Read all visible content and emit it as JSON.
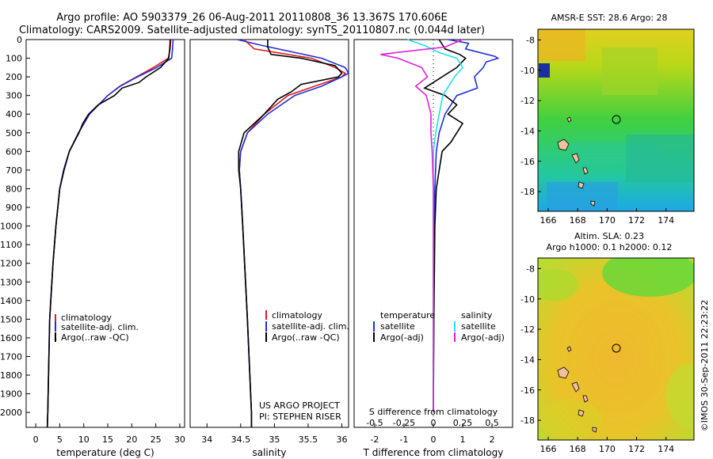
{
  "title": {
    "line1": "Argo profile: AO 5903379_26 06-Aug-2011 20110808_36 13.367S 170.606E",
    "line2": "Climatology: CARS2009. Satellite-adjusted climatology: synTS_20110807.nc (0.044d later)"
  },
  "colors": {
    "climatology": "#e41a1c",
    "satellite": "#1f2fd6",
    "argo": "#000000",
    "sat_salinity": "#22e0e8",
    "argo_salinity": "#e020d8"
  },
  "depth_ticks": [
    "0",
    "100",
    "200",
    "300",
    "400",
    "500",
    "600",
    "700",
    "800",
    "900",
    "1000",
    "1100",
    "1200",
    "1300",
    "1400",
    "1500",
    "1600",
    "1700",
    "1800",
    "1900",
    "2000"
  ],
  "credits": {
    "line1": "US ARGO PROJECT",
    "line2": "PI: STEPHEN RISER"
  },
  "watermark": "©IMOS 30-Sep-2011 22:23:22",
  "legend_profiles": [
    "climatology",
    "satellite-adj. clim.",
    "Argo(..raw -QC)"
  ],
  "legend_diff": {
    "temp_head": "temperature",
    "temp_sat": "satellite",
    "temp_argo": "Argo(-adj)",
    "sal_head": "salinity",
    "sal_sat": "satellite",
    "sal_argo": "Argo(-adj)"
  },
  "map_sst": {
    "title": "AMSR-E SST: 28.6 Argo: 28"
  },
  "map_sla": {
    "title1": "Altim. SLA: 0.23",
    "title2": "Argo h1000: 0.1 h2000: 0.12"
  },
  "map_xticks": [
    "166",
    "168",
    "170",
    "172",
    "174"
  ],
  "map_yticks": [
    "-8",
    "-10",
    "-12",
    "-14",
    "-16",
    "-18"
  ],
  "chart_data": [
    {
      "type": "line",
      "xlabel": "temperature (deg C)",
      "ylabel": "",
      "xlim": [
        -2,
        31
      ],
      "ylim": [
        2080,
        0
      ],
      "xticks": [
        "0",
        "5",
        "10",
        "15",
        "20",
        "25",
        "30"
      ],
      "series": [
        {
          "name": "climatology",
          "depth": [
            0,
            50,
            100,
            150,
            200,
            250,
            300,
            400,
            500,
            600,
            700,
            800,
            1000,
            1200,
            1500,
            2000,
            2080
          ],
          "values": [
            28.1,
            28.0,
            27.6,
            24.5,
            21.0,
            17.5,
            15.0,
            11.2,
            8.9,
            7.0,
            5.8,
            5.0,
            4.2,
            3.6,
            2.9,
            2.5,
            2.4
          ]
        },
        {
          "name": "satellite-adj. clim.",
          "depth": [
            0,
            50,
            100,
            150,
            200,
            250,
            300,
            400,
            500,
            600,
            700,
            800,
            1000,
            1200,
            1500,
            2000,
            2080
          ],
          "values": [
            28.6,
            28.5,
            28.3,
            25.2,
            21.2,
            17.6,
            15.0,
            11.2,
            8.9,
            7.0,
            5.8,
            5.0,
            4.2,
            3.6,
            2.9,
            2.5,
            2.4
          ]
        },
        {
          "name": "Argo(..raw -QC)",
          "depth": [
            0,
            50,
            100,
            150,
            200,
            230,
            260,
            300,
            350,
            400,
            450,
            500,
            600,
            700,
            800,
            1000,
            1200,
            1500,
            2000,
            2080
          ],
          "values": [
            28.0,
            27.9,
            27.7,
            26.0,
            23.0,
            21.5,
            18.0,
            16.4,
            13.0,
            11.0,
            9.8,
            9.0,
            7.0,
            5.9,
            5.0,
            4.2,
            3.6,
            2.9,
            2.5,
            2.4
          ]
        }
      ]
    },
    {
      "type": "line",
      "xlabel": "salinity",
      "ylabel": "",
      "xlim": [
        33.75,
        36.1
      ],
      "ylim": [
        2080,
        0
      ],
      "xticks": [
        "34",
        "34.5",
        "35",
        "35.5",
        "36"
      ],
      "series": [
        {
          "name": "climatology",
          "depth": [
            0,
            50,
            100,
            150,
            180,
            200,
            250,
            300,
            400,
            500,
            600,
            700,
            800,
            1000,
            1500,
            2000,
            2080
          ],
          "values": [
            34.55,
            34.7,
            35.55,
            35.9,
            36.05,
            36.0,
            35.6,
            35.2,
            34.85,
            34.6,
            34.5,
            34.48,
            34.5,
            34.53,
            34.6,
            34.66,
            34.66
          ]
        },
        {
          "name": "satellite-adj. clim.",
          "depth": [
            0,
            30,
            100,
            150,
            180,
            200,
            250,
            300,
            400,
            500,
            600,
            700,
            800,
            1000,
            1500,
            2000,
            2080
          ],
          "values": [
            34.45,
            34.8,
            35.7,
            36.05,
            36.1,
            36.0,
            35.7,
            35.3,
            34.9,
            34.6,
            34.5,
            34.48,
            34.5,
            34.53,
            34.6,
            34.66,
            34.66
          ]
        },
        {
          "name": "Argo(..raw -QC)",
          "depth": [
            0,
            40,
            80,
            100,
            140,
            180,
            200,
            240,
            280,
            320,
            400,
            450,
            500,
            600,
            700,
            800,
            1000,
            1500,
            2000,
            2080
          ],
          "values": [
            34.9,
            34.9,
            34.95,
            35.4,
            35.9,
            36.0,
            35.95,
            35.4,
            35.25,
            35.05,
            34.85,
            34.7,
            34.55,
            34.47,
            34.47,
            34.5,
            34.53,
            34.6,
            34.66,
            34.66
          ]
        }
      ]
    },
    {
      "type": "line",
      "xlabel": "T difference from climatology",
      "x2label": "S difference from climatology",
      "xlim": [
        -2.7,
        2.7
      ],
      "ylim": [
        2080,
        0
      ],
      "xticks": [
        "-2",
        "-1",
        "0",
        "1",
        "2"
      ],
      "x2ticks": [
        "-0.5",
        "-0.25",
        "0",
        "0.25",
        "0.5"
      ],
      "series": [
        {
          "name": "satellite (temperature)",
          "depth": [
            0,
            20,
            50,
            90,
            100,
            120,
            150,
            200,
            260,
            300,
            400,
            500,
            600,
            800,
            1000,
            1500,
            2000
          ],
          "values": [
            0.5,
            1.2,
            1.1,
            2.1,
            2.2,
            1.8,
            1.7,
            1.4,
            1.5,
            0.8,
            0.4,
            0.2,
            0.1,
            0.05,
            0.02,
            0.01,
            0.0
          ]
        },
        {
          "name": "Argo(-adj) (temperature)",
          "depth": [
            0,
            50,
            80,
            100,
            150,
            200,
            260,
            300,
            350,
            400,
            450,
            500,
            550,
            600,
            700,
            800,
            1000,
            1500,
            2000
          ],
          "values": [
            0.2,
            0.4,
            0.9,
            1.1,
            0.8,
            0.3,
            -0.3,
            0.4,
            0.8,
            0.5,
            1.0,
            0.8,
            0.6,
            0.3,
            0.2,
            0.1,
            0.05,
            0.02,
            0.0
          ]
        },
        {
          "name": "satellite (salinity)",
          "depth": [
            0,
            30,
            70,
            100,
            150,
            200,
            300,
            400,
            500,
            600,
            800,
            1000,
            1500,
            2000
          ],
          "values": [
            -0.22,
            -0.08,
            0.05,
            0.2,
            0.25,
            0.18,
            0.08,
            0.05,
            0.02,
            0.0,
            0.0,
            0.0,
            0.0,
            0.0
          ]
        },
        {
          "name": "Argo(-adj) (salinity)",
          "depth": [
            0,
            40,
            80,
            100,
            150,
            200,
            250,
            300,
            400,
            500,
            600,
            800,
            1000,
            1500,
            2000
          ],
          "values": [
            0.25,
            0.1,
            -0.45,
            -0.3,
            -0.1,
            -0.05,
            -0.15,
            -0.06,
            -0.02,
            -0.02,
            -0.01,
            0.0,
            0.0,
            0.0,
            0.0
          ]
        }
      ]
    }
  ]
}
